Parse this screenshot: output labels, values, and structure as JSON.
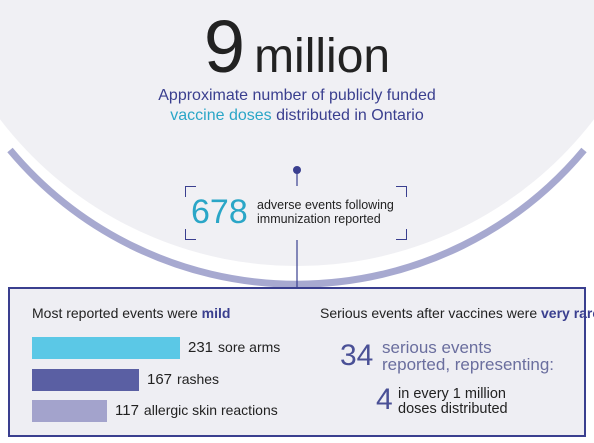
{
  "headline": {
    "number": "9",
    "unit": "million"
  },
  "subtitle": {
    "line1": "Approximate number of publicly funded",
    "line2_highlight": "vaccine doses",
    "line2_rest": " distributed in Ontario"
  },
  "adverse_events": {
    "number": "678",
    "text_line1": "adverse events following",
    "text_line2": "immunization reported"
  },
  "mild": {
    "title_prefix": "Most reported events were ",
    "title_emphasis": "mild",
    "items": [
      {
        "value": 231,
        "count": "231",
        "label": "sore arms",
        "color": "#5bc8e6"
      },
      {
        "value": 167,
        "count": "167",
        "label": "rashes",
        "color": "#5a5fa3"
      },
      {
        "value": 117,
        "count": "117",
        "label": "allergic skin reactions",
        "color": "#a3a3cc"
      }
    ]
  },
  "serious": {
    "title_prefix": "Serious events after vaccines were ",
    "title_emphasis": "very rare",
    "number": "34",
    "text_line1": "serious events",
    "text_line2": "reported, representing:",
    "rate_number": "4",
    "rate_line1": "in every 1 million",
    "rate_line2": "doses distributed"
  },
  "colors": {
    "navy": "#3a3f8f",
    "teal": "#2aa6c7",
    "arc": "#a7a9d0",
    "circle_fill": "#f0f0f4"
  }
}
